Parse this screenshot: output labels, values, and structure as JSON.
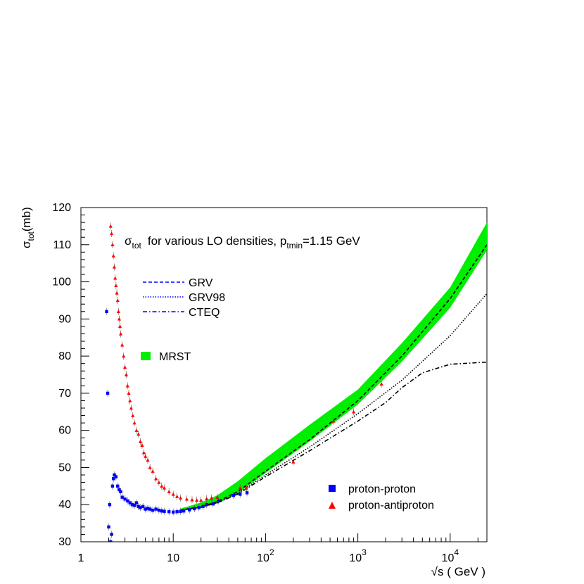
{
  "chart_data": {
    "type": "scatter",
    "title_main": "σ",
    "title_main_sub": "tot",
    "title_rest": "for various LO densities, p",
    "title_pt_sub": "tmin",
    "title_tail": "=1.15 GeV",
    "ylabel_main": "σ",
    "ylabel_sub": "tot",
    "ylabel_unit": "(mb)",
    "xlabel": "√s ( GeV )",
    "x_scale": "log",
    "xlim": [
      1,
      25000
    ],
    "ylim": [
      30,
      120
    ],
    "x_ticks": [
      {
        "value": 1,
        "label": "1"
      },
      {
        "value": 10,
        "label": "10"
      },
      {
        "value": 100,
        "label": "10",
        "exp": "2"
      },
      {
        "value": 1000,
        "label": "10",
        "exp": "3"
      },
      {
        "value": 10000,
        "label": "10",
        "exp": "4"
      }
    ],
    "y_ticks": [
      30,
      40,
      50,
      60,
      70,
      80,
      90,
      100,
      110,
      120
    ],
    "legend_lines": [
      {
        "name": "GRV",
        "style": "dashed"
      },
      {
        "name": "GRV98",
        "style": "dotted"
      },
      {
        "name": "CTEQ",
        "style": "dashdot"
      }
    ],
    "legend_band": {
      "name": "MRST",
      "color": "#00ee00"
    },
    "legend_points": [
      {
        "name": "proton-proton",
        "color": "#0000ff",
        "marker": "square"
      },
      {
        "name": "proton-antiproton",
        "color": "#ff0000",
        "marker": "triangle"
      }
    ],
    "curves": [
      {
        "name": "GRV",
        "style": "dashed",
        "color": "#000000",
        "x": [
          12,
          20,
          30,
          50,
          100,
          300,
          1000,
          3000,
          10000,
          25000
        ],
        "y": [
          38.5,
          39.5,
          40.8,
          43.5,
          49.0,
          57.5,
          68.0,
          80.0,
          95.5,
          110.0
        ]
      },
      {
        "name": "GRV98",
        "style": "dotted",
        "color": "#000000",
        "x": [
          12,
          20,
          30,
          50,
          100,
          300,
          1000,
          3000,
          10000,
          25000
        ],
        "y": [
          38.5,
          39.3,
          40.5,
          43.0,
          48.0,
          55.5,
          64.5,
          73.5,
          85.5,
          96.8
        ]
      },
      {
        "name": "CTEQ",
        "style": "dashdot",
        "color": "#000000",
        "x": [
          12,
          20,
          30,
          50,
          100,
          300,
          1000,
          2000,
          3000,
          5000,
          10000,
          25000
        ],
        "y": [
          38.5,
          39.3,
          40.5,
          42.8,
          47.5,
          54.5,
          62.5,
          67.5,
          71.5,
          75.5,
          77.8,
          78.4
        ]
      }
    ],
    "band": {
      "name": "MRST",
      "color": "#00ee00",
      "x": [
        12,
        20,
        30,
        50,
        100,
        300,
        1000,
        3000,
        10000,
        25000
      ],
      "y_low": [
        38.2,
        39.2,
        40.3,
        43.0,
        48.5,
        57.0,
        67.0,
        78.5,
        93.0,
        108.5
      ],
      "y_high": [
        38.9,
        40.6,
        42.5,
        46.3,
        52.5,
        61.5,
        71.0,
        83.5,
        98.5,
        116.0
      ]
    },
    "proton_antiproton": {
      "color": "#ff0000",
      "x": [
        2.1,
        2.15,
        2.2,
        2.25,
        2.3,
        2.35,
        2.4,
        2.45,
        2.5,
        2.55,
        2.6,
        2.65,
        2.7,
        2.8,
        2.9,
        3.0,
        3.1,
        3.2,
        3.3,
        3.4,
        3.5,
        3.65,
        3.8,
        4.0,
        4.2,
        4.4,
        4.6,
        4.8,
        5.0,
        5.3,
        5.6,
        6.0,
        6.5,
        7.0,
        7.5,
        8.0,
        9.0,
        10.0,
        11.0,
        12.0,
        14.0,
        16.0,
        18.0,
        20.0,
        23.0,
        26.0,
        30.0,
        53.0,
        62.0,
        200.0,
        546.0,
        900.0,
        1800.0
      ],
      "y": [
        115,
        113,
        110,
        107,
        104,
        101,
        99,
        97,
        95,
        92,
        90,
        88,
        86,
        83,
        80,
        77,
        75,
        72,
        70,
        68,
        66,
        64,
        62,
        60,
        59,
        57,
        56,
        54,
        53,
        52,
        50,
        49,
        47,
        46,
        45,
        44.5,
        43.5,
        42.8,
        42.2,
        41.8,
        41.5,
        41.3,
        41.2,
        41.2,
        41.6,
        41.8,
        42.0,
        44.5,
        44.5,
        51.5,
        62.5,
        65.0,
        72.5
      ]
    },
    "proton_proton": {
      "color": "#0000ff",
      "x": [
        1.9,
        1.95,
        2.0,
        2.05,
        2.1,
        2.15,
        2.2,
        2.25,
        2.3,
        2.4,
        2.5,
        2.6,
        2.7,
        2.8,
        3.0,
        3.2,
        3.4,
        3.6,
        3.8,
        4.0,
        4.2,
        4.4,
        4.7,
        5.0,
        5.3,
        5.6,
        6.0,
        6.5,
        7.0,
        7.5,
        8.0,
        9.0,
        10.0,
        11.0,
        12.0,
        13.0,
        15.0,
        17.0,
        19.0,
        21.0,
        23.0,
        27.0,
        31.0,
        45.0,
        53.0,
        63.0
      ],
      "y": [
        92,
        70,
        34,
        40,
        30,
        32,
        45,
        47,
        48,
        47.5,
        45,
        44,
        43.5,
        42,
        41.5,
        41,
        40.5,
        40,
        39.8,
        40.5,
        39.5,
        39.2,
        39.5,
        38.8,
        39,
        38.8,
        38.5,
        38.8,
        38.5,
        38.3,
        38.2,
        38.1,
        38.0,
        38.1,
        38.2,
        38.3,
        38.6,
        38.9,
        39.2,
        39.5,
        40.0,
        40.2,
        41.0,
        42.5,
        42.8,
        43.2
      ]
    }
  }
}
